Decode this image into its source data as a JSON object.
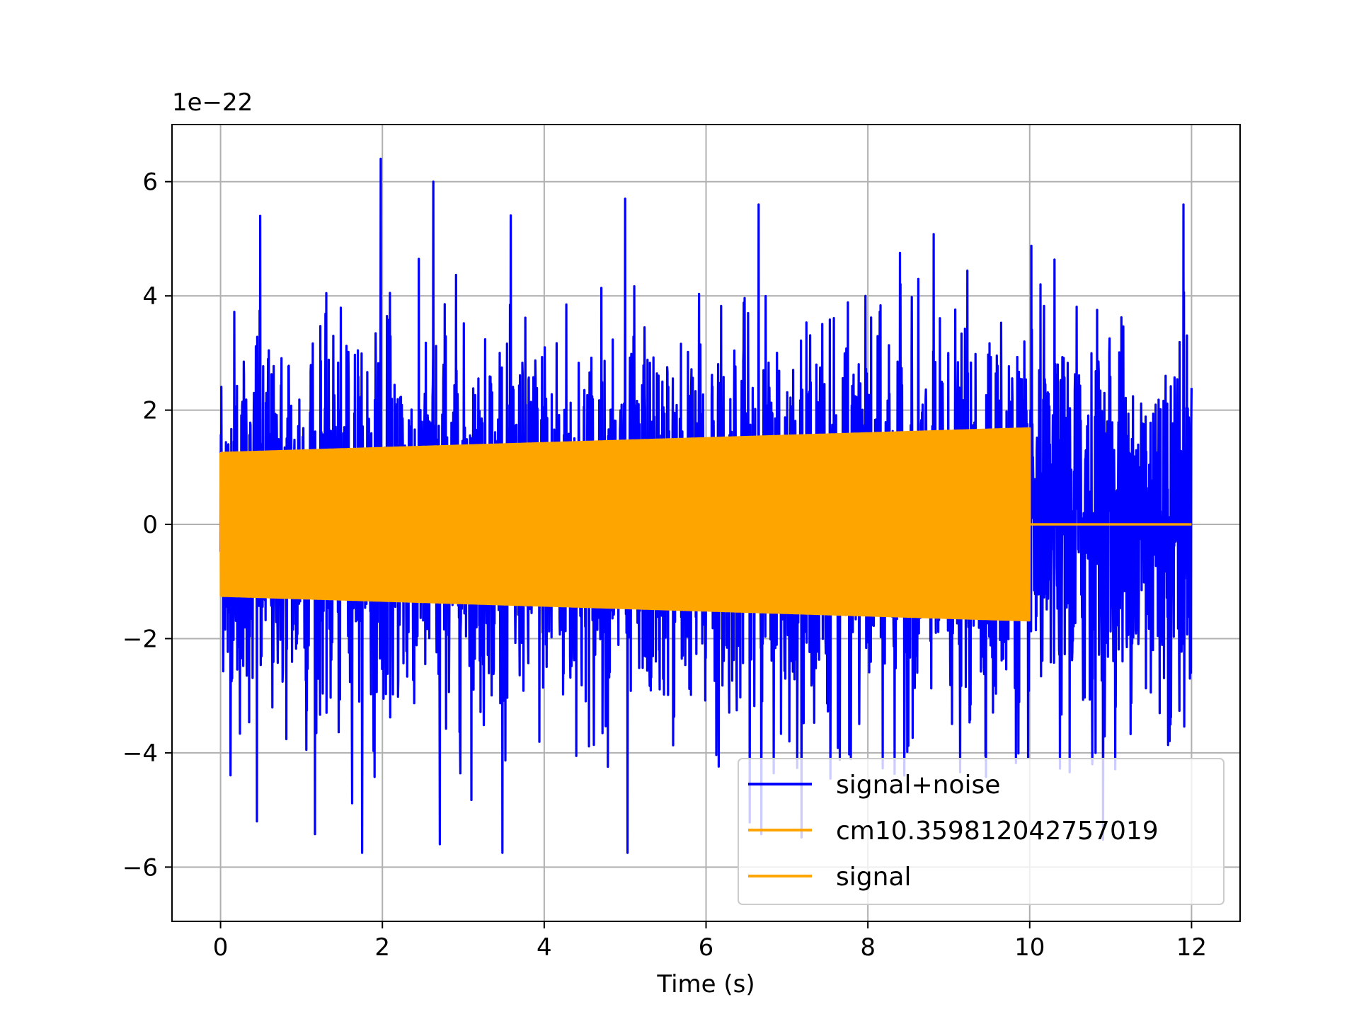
{
  "chart_data": {
    "type": "line",
    "xlabel": "Time (s)",
    "ylabel": "",
    "offset_text": "1e−22",
    "xlim": [
      -0.6,
      12.6
    ],
    "ylim": [
      -6.95,
      7.0
    ],
    "x_ticks": [
      0,
      2,
      4,
      6,
      8,
      10,
      12
    ],
    "x_tick_labels": [
      "0",
      "2",
      "4",
      "6",
      "8",
      "10",
      "12"
    ],
    "y_ticks": [
      -6,
      -4,
      -2,
      0,
      2,
      4,
      6
    ],
    "y_tick_labels": [
      "−6",
      "−4",
      "−2",
      "0",
      "2",
      "4",
      "6"
    ],
    "grid": true,
    "legend_position": "lower-right",
    "series": [
      {
        "name": "signal+noise",
        "color": "#0000ff",
        "t_start": 0,
        "t_end": 12,
        "typical_envelope": [
          -2.8,
          2.8
        ],
        "max": 6.4,
        "min": -5.75,
        "peaks": [
          {
            "t": 0.49,
            "value": 5.4
          },
          {
            "t": 1.98,
            "value": 6.4
          },
          {
            "t": 2.63,
            "value": 6.0
          },
          {
            "t": 2.71,
            "value": -5.6
          },
          {
            "t": 5.0,
            "value": 5.7
          },
          {
            "t": 5.03,
            "value": -5.75
          },
          {
            "t": 6.65,
            "value": 5.6
          },
          {
            "t": 11.9,
            "value": 5.6
          },
          {
            "t": 0.45,
            "value": -5.2
          }
        ]
      },
      {
        "name": "cm10.359812042757019",
        "color": "#ffa500",
        "t_start": 0,
        "t_end": 10,
        "envelope_start": 1.25,
        "envelope_end": 1.68,
        "after_end": 0
      },
      {
        "name": "signal",
        "color": "#ffa500",
        "t_start": 0,
        "t_end": 12,
        "envelope_start": 1.25,
        "envelope_end": 1.68,
        "signal_end_time": 10,
        "after_end": 0
      }
    ]
  }
}
